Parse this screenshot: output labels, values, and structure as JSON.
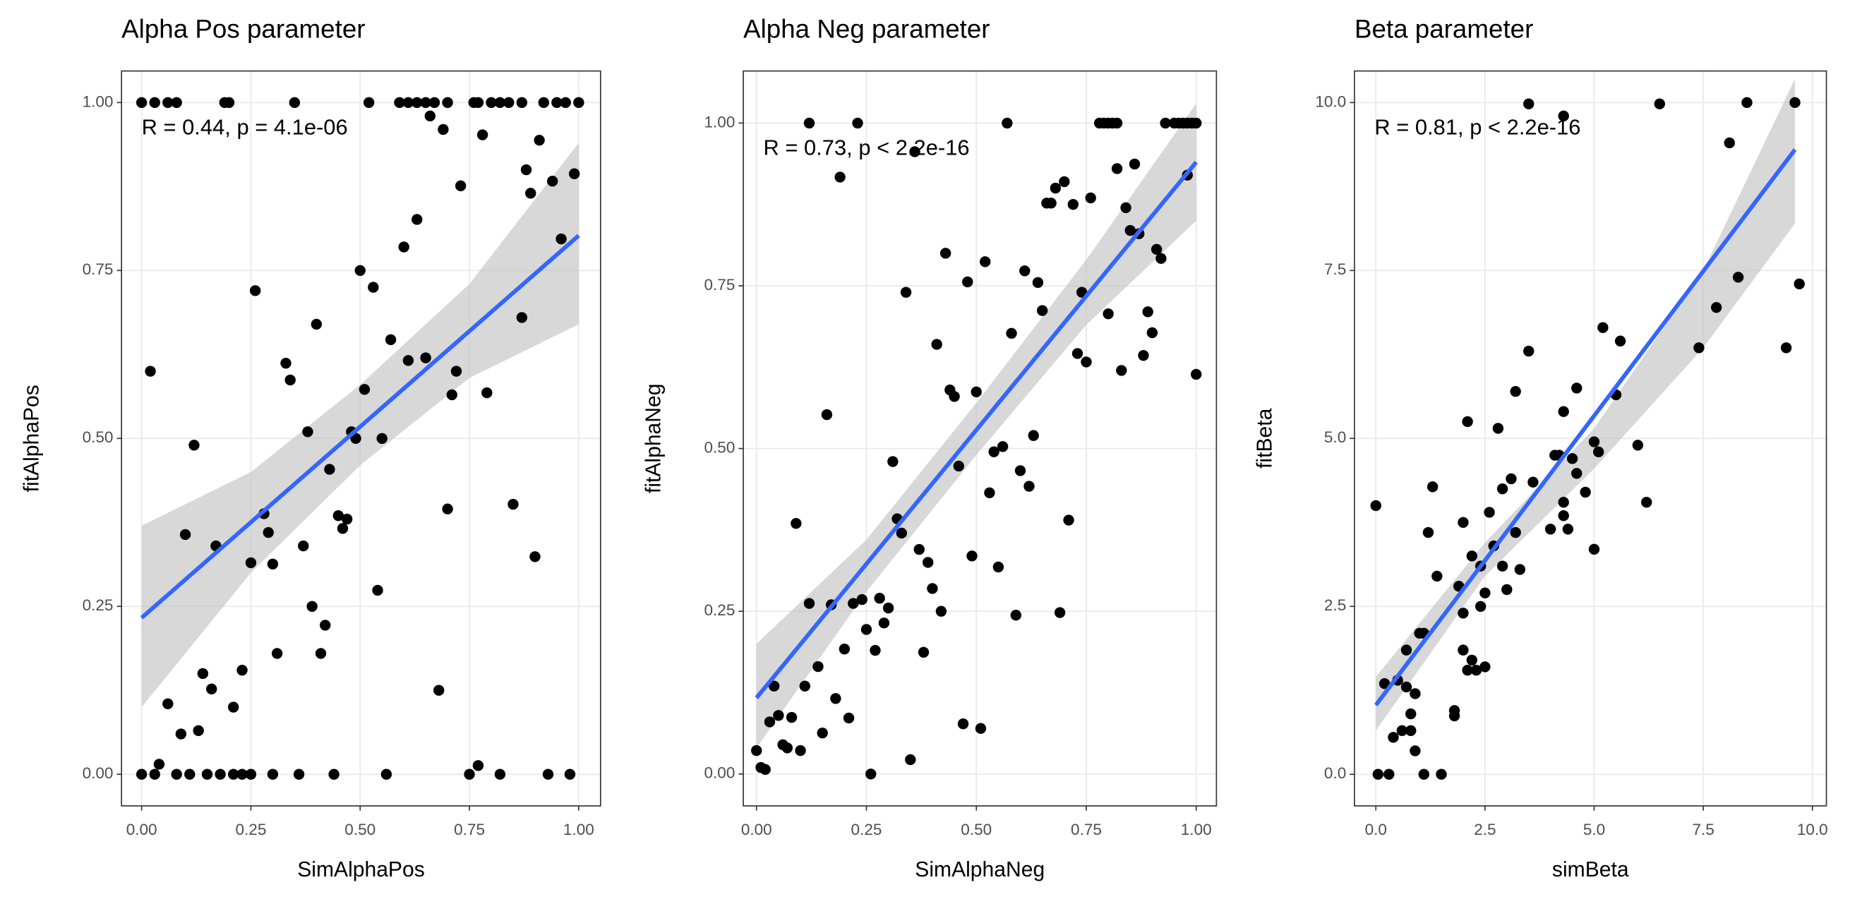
{
  "chart_data": [
    {
      "type": "scatter",
      "title": "Alpha Pos parameter",
      "xlabel": "SimAlphaPos",
      "ylabel": "fitAlphaPos",
      "annotation": "R = 0.44, p = 4.1e-06",
      "x": [
        0,
        0.03,
        0.06,
        0.08,
        0.19,
        0.2,
        0.35,
        0.52,
        0.59,
        0.61,
        0.63,
        0.65,
        0.67,
        0.7,
        0.76,
        0.77,
        0.8,
        0.82,
        0.84,
        0.87,
        0.92,
        0.95,
        0.97,
        1.0,
        0,
        0.03,
        0.08,
        0.11,
        0.15,
        0.18,
        0.21,
        0.23,
        0.25,
        0.3,
        0.36,
        0.44,
        0.56,
        0.75,
        0.82,
        0.93,
        0.98,
        0.02,
        0.04,
        0.06,
        0.09,
        0.1,
        0.12,
        0.13,
        0.14,
        0.16,
        0.17,
        0.21,
        0.23,
        0.25,
        0.26,
        0.28,
        0.29,
        0.3,
        0.31,
        0.33,
        0.34,
        0.37,
        0.38,
        0.39,
        0.4,
        0.41,
        0.42,
        0.43,
        0.45,
        0.46,
        0.47,
        0.48,
        0.49,
        0.5,
        0.51,
        0.53,
        0.54,
        0.55,
        0.57,
        0.6,
        0.61,
        0.63,
        0.65,
        0.66,
        0.68,
        0.69,
        0.7,
        0.71,
        0.72,
        0.73,
        0.77,
        0.78,
        0.79,
        0.85,
        0.87,
        0.88,
        0.89,
        0.9,
        0.91,
        0.94,
        0.96,
        0.99
      ],
      "y": [
        1,
        1,
        1,
        1,
        1,
        1,
        1,
        1,
        1,
        1,
        1,
        1,
        1,
        1,
        1,
        1,
        1,
        1,
        1,
        1,
        1,
        1,
        1,
        1,
        0,
        0,
        0,
        0,
        0,
        0,
        0,
        0,
        0,
        0,
        0,
        0,
        0,
        0,
        0,
        0,
        0,
        0.6,
        0.015,
        0.105,
        0.06,
        0.357,
        0.49,
        0.065,
        0.15,
        0.127,
        0.34,
        0.1,
        0.155,
        0.315,
        0.72,
        0.388,
        0.36,
        0.313,
        0.18,
        0.612,
        0.587,
        0.34,
        0.51,
        0.25,
        0.67,
        0.18,
        0.222,
        0.454,
        0.385,
        0.366,
        0.38,
        0.51,
        0.5,
        0.75,
        0.573,
        0.725,
        0.274,
        0.5,
        0.647,
        0.785,
        0.616,
        0.826,
        0.62,
        0.98,
        0.125,
        0.96,
        0.395,
        0.565,
        0.6,
        0.876,
        0.013,
        0.952,
        0.568,
        0.402,
        0.68,
        0.9,
        0.865,
        0.324,
        0.944,
        0.883,
        0.797,
        0.894
      ],
      "fit": {
        "x": [
          0,
          1
        ],
        "y": [
          0.233,
          0.802
        ]
      },
      "band": {
        "x": [
          0,
          0.25,
          0.5,
          0.75,
          1
        ],
        "lower": [
          0.1,
          0.3,
          0.46,
          0.59,
          0.67
        ],
        "upper": [
          0.37,
          0.45,
          0.58,
          0.73,
          0.94
        ]
      },
      "xlim": [
        -0.046,
        1.05
      ],
      "ylim": [
        -0.047,
        1.047
      ],
      "xticks": [
        {
          "value": 0,
          "label": "0.00"
        },
        {
          "value": 0.25,
          "label": "0.25"
        },
        {
          "value": 0.5,
          "label": "0.50"
        },
        {
          "value": 0.75,
          "label": "0.75"
        },
        {
          "value": 1,
          "label": "1.00"
        }
      ],
      "yticks": [
        {
          "value": 0,
          "label": "0.00"
        },
        {
          "value": 0.25,
          "label": "0.25"
        },
        {
          "value": 0.5,
          "label": "0.50"
        },
        {
          "value": 0.75,
          "label": "0.75"
        },
        {
          "value": 1,
          "label": "1.00"
        }
      ],
      "grid": true,
      "point_color": "#000000",
      "fit_color": "#3366ff",
      "band_color": "#bebebe"
    },
    {
      "type": "scatter",
      "title": "Alpha Neg parameter",
      "xlabel": "SimAlphaNeg",
      "ylabel": "fitAlphaNeg",
      "annotation": "R = 0.73, p < 2.2e-16",
      "x": [
        0.12,
        0.23,
        0.57,
        0.78,
        0.79,
        0.8,
        0.81,
        0.82,
        0.93,
        0.95,
        0.96,
        0.97,
        0.98,
        0.99,
        1.0,
        0.0,
        0.01,
        0.02,
        0.03,
        0.04,
        0.05,
        0.06,
        0.07,
        0.08,
        0.09,
        0.1,
        0.11,
        0.12,
        0.14,
        0.15,
        0.16,
        0.17,
        0.18,
        0.19,
        0.2,
        0.21,
        0.22,
        0.24,
        0.25,
        0.26,
        0.27,
        0.28,
        0.29,
        0.3,
        0.31,
        0.32,
        0.33,
        0.34,
        0.35,
        0.36,
        0.37,
        0.38,
        0.39,
        0.4,
        0.41,
        0.42,
        0.43,
        0.44,
        0.45,
        0.46,
        0.47,
        0.48,
        0.49,
        0.5,
        0.51,
        0.52,
        0.53,
        0.54,
        0.55,
        0.56,
        0.58,
        0.59,
        0.6,
        0.61,
        0.62,
        0.63,
        0.64,
        0.65,
        0.66,
        0.67,
        0.68,
        0.69,
        0.7,
        0.71,
        0.72,
        0.73,
        0.74,
        0.75,
        0.76,
        0.8,
        0.82,
        0.83,
        0.84,
        0.85,
        0.86,
        0.87,
        0.88,
        0.89,
        0.9,
        0.91,
        0.92,
        0.98,
        1.0
      ],
      "y": [
        1,
        1,
        1,
        1,
        1,
        1,
        1,
        1,
        1,
        1,
        1,
        1,
        1,
        1,
        1,
        0.036,
        0.01,
        0.007,
        0.08,
        0.135,
        0.09,
        0.045,
        0.04,
        0.087,
        0.385,
        0.036,
        0.135,
        0.262,
        0.165,
        0.063,
        0.552,
        0.26,
        0.116,
        0.917,
        0.192,
        0.086,
        0.262,
        0.268,
        0.222,
        0.0,
        0.19,
        0.27,
        0.232,
        0.255,
        0.48,
        0.392,
        0.37,
        0.74,
        0.022,
        0.956,
        0.345,
        0.187,
        0.325,
        0.285,
        0.66,
        0.25,
        0.8,
        0.59,
        0.58,
        0.473,
        0.077,
        0.756,
        0.335,
        0.587,
        0.07,
        0.787,
        0.432,
        0.495,
        0.318,
        0.503,
        0.677,
        0.244,
        0.466,
        0.773,
        0.442,
        0.52,
        0.755,
        0.712,
        0.877,
        0.877,
        0.9,
        0.248,
        0.91,
        0.39,
        0.875,
        0.646,
        0.74,
        0.633,
        0.885,
        0.707,
        0.93,
        0.62,
        0.87,
        0.835,
        0.937,
        0.83,
        0.643,
        0.71,
        0.678,
        0.806,
        0.792,
        0.92,
        0.614
      ],
      "fit": {
        "x": [
          0,
          1
        ],
        "y": [
          0.117,
          0.94
        ]
      },
      "band": {
        "x": [
          0,
          0.25,
          0.5,
          0.75,
          1
        ],
        "lower": [
          0.04,
          0.28,
          0.49,
          0.69,
          0.85
        ],
        "upper": [
          0.2,
          0.36,
          0.57,
          0.79,
          1.03
        ]
      },
      "xlim": [
        -0.03,
        1.046
      ],
      "ylim": [
        -0.049,
        1.08
      ],
      "xticks": [
        {
          "value": 0,
          "label": "0.00"
        },
        {
          "value": 0.25,
          "label": "0.25"
        },
        {
          "value": 0.5,
          "label": "0.50"
        },
        {
          "value": 0.75,
          "label": "0.75"
        },
        {
          "value": 1,
          "label": "1.00"
        }
      ],
      "yticks": [
        {
          "value": 0,
          "label": "0.00"
        },
        {
          "value": 0.25,
          "label": "0.25"
        },
        {
          "value": 0.5,
          "label": "0.50"
        },
        {
          "value": 0.75,
          "label": "0.75"
        },
        {
          "value": 1,
          "label": "1.00"
        }
      ],
      "grid": true,
      "point_color": "#000000",
      "fit_color": "#3366ff",
      "band_color": "#bebebe"
    },
    {
      "type": "scatter",
      "title": "Beta parameter",
      "xlabel": "simBeta",
      "ylabel": "fitBeta",
      "annotation": "R = 0.81, p < 2.2e-16",
      "x": [
        0,
        0.05,
        0.2,
        0.3,
        0.4,
        0.5,
        0.6,
        0.7,
        0.7,
        0.8,
        0.8,
        0.9,
        0.9,
        1.0,
        1.1,
        1.1,
        1.2,
        1.3,
        1.4,
        1.5,
        1.8,
        1.8,
        1.9,
        2.0,
        2.0,
        2.0,
        2.1,
        2.1,
        2.2,
        2.2,
        2.3,
        2.4,
        2.4,
        2.5,
        2.5,
        2.6,
        2.7,
        2.8,
        2.9,
        2.9,
        3.0,
        3.1,
        3.2,
        3.3,
        3.2,
        3.5,
        3.5,
        3.6,
        4.0,
        4.1,
        4.2,
        4.3,
        4.3,
        4.3,
        4.3,
        4.4,
        4.5,
        4.6,
        4.6,
        4.8,
        5.0,
        5.0,
        5.1,
        5.2,
        5.5,
        5.6,
        6.0,
        6.2,
        6.5,
        7.4,
        7.8,
        8.1,
        8.3,
        8.5,
        9.4,
        9.6,
        9.7
      ],
      "y": [
        4.0,
        0,
        1.35,
        0,
        0.55,
        1.4,
        0.65,
        1.85,
        1.3,
        0.9,
        0.65,
        0.35,
        1.2,
        2.1,
        2.1,
        0,
        3.6,
        4.28,
        2.95,
        0,
        0.95,
        0.87,
        2.8,
        3.75,
        2.4,
        1.85,
        5.25,
        1.55,
        3.25,
        1.7,
        1.55,
        2.5,
        3.1,
        2.7,
        1.6,
        3.9,
        3.4,
        5.15,
        4.25,
        3.1,
        2.75,
        4.4,
        5.7,
        3.05,
        3.6,
        6.3,
        9.98,
        4.35,
        3.65,
        4.75,
        4.75,
        4.05,
        3.85,
        5.4,
        9.8,
        3.65,
        4.7,
        4.48,
        5.75,
        4.2,
        4.95,
        3.35,
        4.8,
        6.65,
        5.65,
        6.45,
        4.9,
        4.05,
        9.98,
        6.35,
        6.95,
        9.4,
        7.4,
        10.0,
        6.35,
        10.0,
        7.3
      ],
      "fit": {
        "x": [
          0,
          9.6
        ],
        "y": [
          1.03,
          9.3
        ]
      },
      "band": {
        "x": [
          0,
          2.5,
          5,
          7.5,
          9.6
        ],
        "lower": [
          0.65,
          2.95,
          4.55,
          6.35,
          8.2
        ],
        "upper": [
          1.45,
          3.45,
          5.15,
          7.5,
          10.35
        ]
      },
      "xlim": [
        -0.49,
        10.32
      ],
      "ylim": [
        -0.47,
        10.47
      ],
      "xticks": [
        {
          "value": 0,
          "label": "0.0"
        },
        {
          "value": 2.5,
          "label": "2.5"
        },
        {
          "value": 5,
          "label": "5.0"
        },
        {
          "value": 7.5,
          "label": "7.5"
        },
        {
          "value": 10,
          "label": "10.0"
        }
      ],
      "yticks": [
        {
          "value": 0,
          "label": "0.0"
        },
        {
          "value": 2.5,
          "label": "2.5"
        },
        {
          "value": 5,
          "label": "5.0"
        },
        {
          "value": 7.5,
          "label": "7.5"
        },
        {
          "value": 10,
          "label": "10.0"
        }
      ],
      "grid": true,
      "point_color": "#000000",
      "fit_color": "#3366ff",
      "band_color": "#bebebe"
    }
  ]
}
